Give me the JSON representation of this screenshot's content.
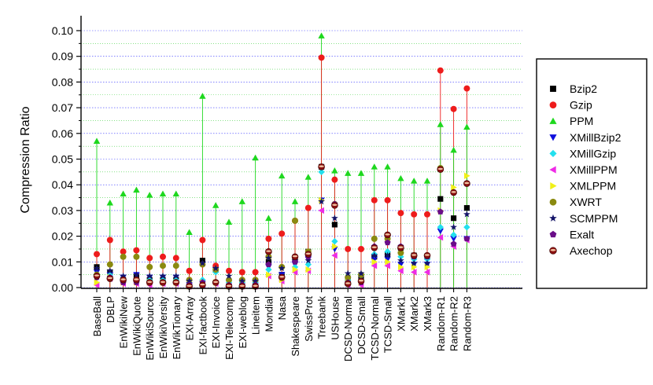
{
  "chart_data": {
    "type": "scatter",
    "title": "",
    "xlabel": "",
    "ylabel": "Compression Ratio",
    "ylim": [
      0.0,
      0.1
    ],
    "yticks": [
      "0.00",
      "0.01",
      "0.02",
      "0.03",
      "0.04",
      "0.05",
      "0.06",
      "0.07",
      "0.08",
      "0.09",
      "0.10"
    ],
    "grid": "horizontal dotted (blue major, green minor)",
    "legend_position": "right",
    "categories": [
      "BaseBall",
      "DBLP",
      "EnWikiNew",
      "EnWikiQuote",
      "EnWikiSource",
      "EnWikiVersity",
      "EnWikTionary",
      "EXI-Array",
      "EXI-factbook",
      "EXI-Invoice",
      "EXI-Telecomp",
      "EXI-weblog",
      "Lineitem",
      "Mondial",
      "Nasa",
      "Shakespeare",
      "SwissProt",
      "Treebank",
      "USHouse",
      "DCSD-Normal",
      "DCSD-Small",
      "TCSD-Normal",
      "TCSD-Small",
      "XMark1",
      "XMark2",
      "XMark3",
      "Random-R1",
      "Random-R2",
      "Random-R3"
    ],
    "series": [
      {
        "name": "Bzip2",
        "color": "#000000",
        "marker": "square",
        "values": [
          0.008,
          0.006,
          0.003,
          0.004,
          0.003,
          0.003,
          0.003,
          0.001,
          0.0105,
          0.007,
          0.0005,
          0.0025,
          0.0025,
          0.01,
          0.005,
          0.011,
          0.014,
          0.047,
          0.0245,
          0.003,
          0.004,
          0.012,
          0.013,
          0.0155,
          0.0125,
          0.012,
          0.0345,
          0.027,
          0.031
        ]
      },
      {
        "name": "Gzip",
        "color": "#ee1c1c",
        "marker": "circle",
        "values": [
          0.013,
          0.0185,
          0.014,
          0.0145,
          0.0115,
          0.012,
          0.0115,
          0.0065,
          0.0185,
          0.0085,
          0.0065,
          0.006,
          0.006,
          0.019,
          0.021,
          0.026,
          0.031,
          0.0895,
          0.042,
          0.015,
          0.015,
          0.034,
          0.034,
          0.029,
          0.0285,
          0.0285,
          0.0845,
          0.0695,
          0.0775
        ]
      },
      {
        "name": "PPM",
        "color": "#1ed81e",
        "marker": "triangle-up",
        "values": [
          0.057,
          0.033,
          0.0365,
          0.038,
          0.036,
          0.0365,
          0.0365,
          0.0215,
          0.0745,
          0.032,
          0.0255,
          0.0335,
          0.0505,
          0.027,
          0.0435,
          0.0335,
          0.043,
          0.098,
          0.0455,
          0.0445,
          0.0445,
          0.047,
          0.047,
          0.0425,
          0.0415,
          0.0415,
          0.0635,
          0.0535,
          0.0625
        ]
      },
      {
        "name": "XMillBzip2",
        "color": "#1010dd",
        "marker": "triangle-down",
        "values": [
          0.006,
          0.005,
          0.004,
          0.005,
          0.004,
          0.004,
          0.004,
          0.001,
          0.002,
          0.007,
          0.002,
          0.002,
          0.002,
          0.008,
          0.005,
          0.009,
          0.011,
          0.034,
          0.015,
          0.003,
          0.004,
          0.011,
          0.011,
          0.009,
          0.009,
          0.009,
          0.022,
          0.019,
          0.019
        ]
      },
      {
        "name": "XMillGzip",
        "color": "#22e0ee",
        "marker": "diamond",
        "values": [
          0.005,
          0.005,
          0.003,
          0.003,
          0.003,
          0.003,
          0.003,
          0.001,
          0.003,
          0.006,
          0.002,
          0.002,
          0.002,
          0.007,
          0.004,
          0.008,
          0.009,
          0.045,
          0.018,
          0.003,
          0.003,
          0.013,
          0.014,
          0.012,
          0.011,
          0.011,
          0.0235,
          0.0205,
          0.0235
        ]
      },
      {
        "name": "XMillPPM",
        "color": "#ee2be6",
        "marker": "triangle-left",
        "values": [
          0.001,
          0.0035,
          0.0015,
          0.0015,
          0.001,
          0.0015,
          0.0015,
          0.0005,
          0.001,
          0.0015,
          0.0005,
          0.0005,
          0.0005,
          0.0045,
          0.0025,
          0.006,
          0.0065,
          0.03,
          0.0125,
          0.001,
          0.001,
          0.0085,
          0.0085,
          0.0065,
          0.006,
          0.006,
          0.0195,
          0.016,
          0.0185
        ]
      },
      {
        "name": "XMLPPM",
        "color": "#f0f018",
        "marker": "triangle-right",
        "values": [
          0.002,
          0.004,
          0.002,
          0.002,
          0.002,
          0.002,
          0.002,
          0.0005,
          0.002,
          0.002,
          0.0005,
          0.0005,
          0.0005,
          0.005,
          0.003,
          0.007,
          0.007,
          0.034,
          0.016,
          0.002,
          0.002,
          0.01,
          0.01,
          0.008,
          0.008,
          0.008,
          0.03,
          0.039,
          0.0435
        ]
      },
      {
        "name": "XWRT",
        "color": "#8a8a10",
        "marker": "circle",
        "values": [
          0.005,
          0.009,
          0.012,
          0.012,
          0.008,
          0.0085,
          0.0085,
          0.003,
          0.009,
          0.007,
          0.003,
          0.003,
          0.003,
          0.012,
          0.008,
          0.026,
          0.014,
          0.047,
          0.0325,
          0.004,
          0.005,
          0.019,
          0.019,
          0.0135,
          0.0125,
          0.0125,
          0.0465,
          0.037,
          0.0405
        ]
      },
      {
        "name": "SCMPPM",
        "color": "#141468",
        "marker": "star",
        "values": [
          0.0075,
          0.0065,
          0.0045,
          0.005,
          0.0045,
          0.0045,
          0.0045,
          0.0025,
          0.0095,
          0.0075,
          0.0045,
          0.0025,
          0.0025,
          0.0115,
          0.0075,
          0.0105,
          0.0105,
          0.0335,
          0.027,
          0.0055,
          0.0055,
          0.0125,
          0.0125,
          0.0105,
          0.0095,
          0.0095,
          0.0295,
          0.0235,
          0.0285
        ]
      },
      {
        "name": "Exalt",
        "color": "#6a0d88",
        "marker": "pentagon",
        "values": [
          0.004,
          0.004,
          0.002,
          0.002,
          0.002,
          0.002,
          0.002,
          0.001,
          0.002,
          0.002,
          0.001,
          0.001,
          0.001,
          0.009,
          0.004,
          0.01,
          0.012,
          0.047,
          0.0325,
          0.002,
          0.002,
          0.016,
          0.0175,
          0.016,
          0.012,
          0.012,
          0.0295,
          0.017,
          0.019
        ]
      },
      {
        "name": "Axechop",
        "color": "#8a1010",
        "marker": "ball",
        "values": [
          0.0045,
          0.0035,
          0.003,
          0.003,
          0.002,
          0.002,
          0.002,
          0.0005,
          0.001,
          0.002,
          0.0005,
          0.0005,
          0.0005,
          0.014,
          0.004,
          0.012,
          0.013,
          0.047,
          0.032,
          0.0015,
          0.0025,
          0.0155,
          0.0205,
          0.0155,
          0.0125,
          0.0125,
          0.046,
          0.037,
          0.0405
        ]
      }
    ]
  }
}
